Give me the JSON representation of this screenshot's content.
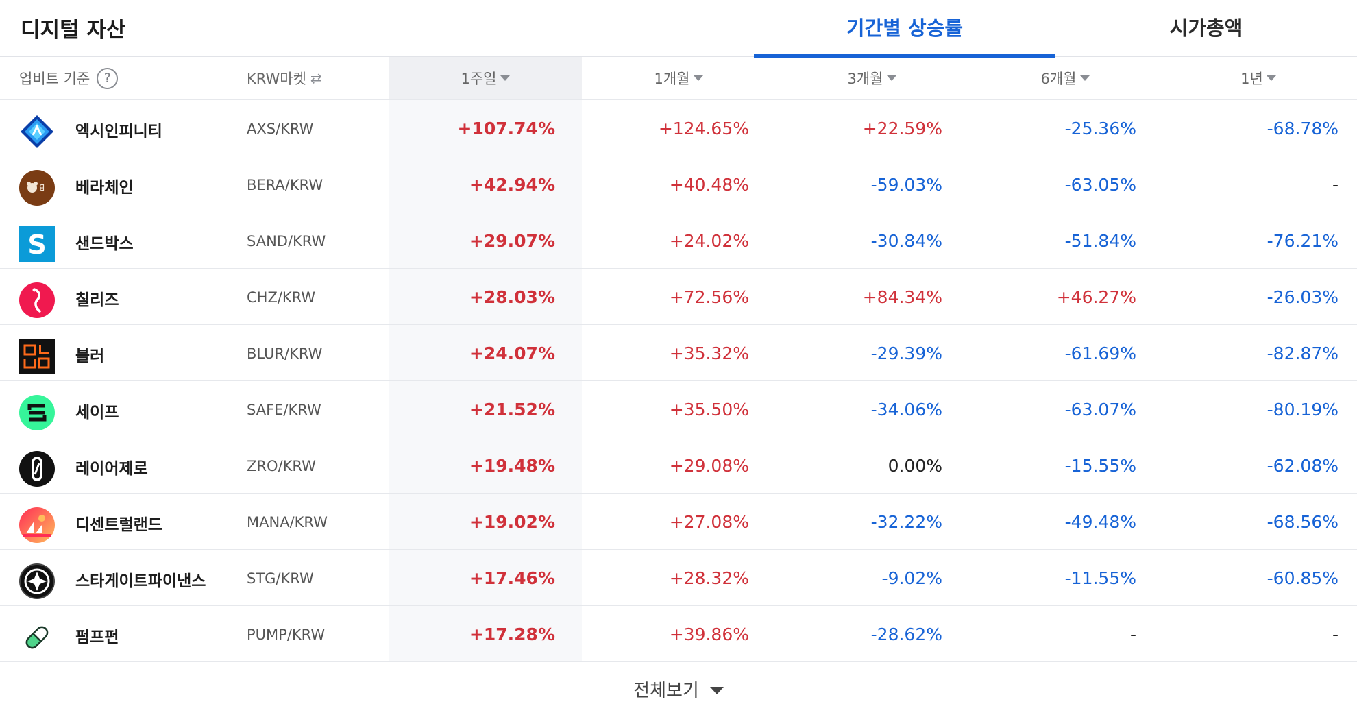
{
  "title": "디지털 자산",
  "tabs": {
    "period": "기간별 상승률",
    "mcap": "시가총액"
  },
  "header": {
    "basis": "업비트 기준",
    "help": "?",
    "market": "KRW마켓",
    "swap_icon": "⇄",
    "week": "1주일",
    "month1": "1개월",
    "month3": "3개월",
    "month6": "6개월",
    "year1": "1년"
  },
  "rows": [
    {
      "name": "엑시인피니티",
      "pair": "AXS/KRW",
      "icon": "axs-icon",
      "w": "+107.74%",
      "m1": "+124.65%",
      "m3": "+22.59%",
      "m6": "-25.36%",
      "y1": "-68.78%"
    },
    {
      "name": "베라체인",
      "pair": "BERA/KRW",
      "icon": "bera-icon",
      "w": "+42.94%",
      "m1": "+40.48%",
      "m3": "-59.03%",
      "m6": "-63.05%",
      "y1": "-"
    },
    {
      "name": "샌드박스",
      "pair": "SAND/KRW",
      "icon": "sand-icon",
      "w": "+29.07%",
      "m1": "+24.02%",
      "m3": "-30.84%",
      "m6": "-51.84%",
      "y1": "-76.21%"
    },
    {
      "name": "칠리즈",
      "pair": "CHZ/KRW",
      "icon": "chz-icon",
      "w": "+28.03%",
      "m1": "+72.56%",
      "m3": "+84.34%",
      "m6": "+46.27%",
      "y1": "-26.03%"
    },
    {
      "name": "블러",
      "pair": "BLUR/KRW",
      "icon": "blur-icon",
      "w": "+24.07%",
      "m1": "+35.32%",
      "m3": "-29.39%",
      "m6": "-61.69%",
      "y1": "-82.87%"
    },
    {
      "name": "세이프",
      "pair": "SAFE/KRW",
      "icon": "safe-icon",
      "w": "+21.52%",
      "m1": "+35.50%",
      "m3": "-34.06%",
      "m6": "-63.07%",
      "y1": "-80.19%"
    },
    {
      "name": "레이어제로",
      "pair": "ZRO/KRW",
      "icon": "zro-icon",
      "w": "+19.48%",
      "m1": "+29.08%",
      "m3": "0.00%",
      "m6": "-15.55%",
      "y1": "-62.08%"
    },
    {
      "name": "디센트럴랜드",
      "pair": "MANA/KRW",
      "icon": "mana-icon",
      "w": "+19.02%",
      "m1": "+27.08%",
      "m3": "-32.22%",
      "m6": "-49.48%",
      "y1": "-68.56%"
    },
    {
      "name": "스타게이트파이낸스",
      "pair": "STG/KRW",
      "icon": "stg-icon",
      "w": "+17.46%",
      "m1": "+28.32%",
      "m3": "-9.02%",
      "m6": "-11.55%",
      "y1": "-60.85%"
    },
    {
      "name": "펌프펀",
      "pair": "PUMP/KRW",
      "icon": "pump-icon",
      "w": "+17.28%",
      "m1": "+39.86%",
      "m3": "-28.62%",
      "m6": "-",
      "y1": "-"
    }
  ],
  "footer": {
    "more": "전체보기"
  },
  "colors": {
    "up": "#d0313a",
    "down": "#1763d6",
    "accent": "#1763d6"
  }
}
